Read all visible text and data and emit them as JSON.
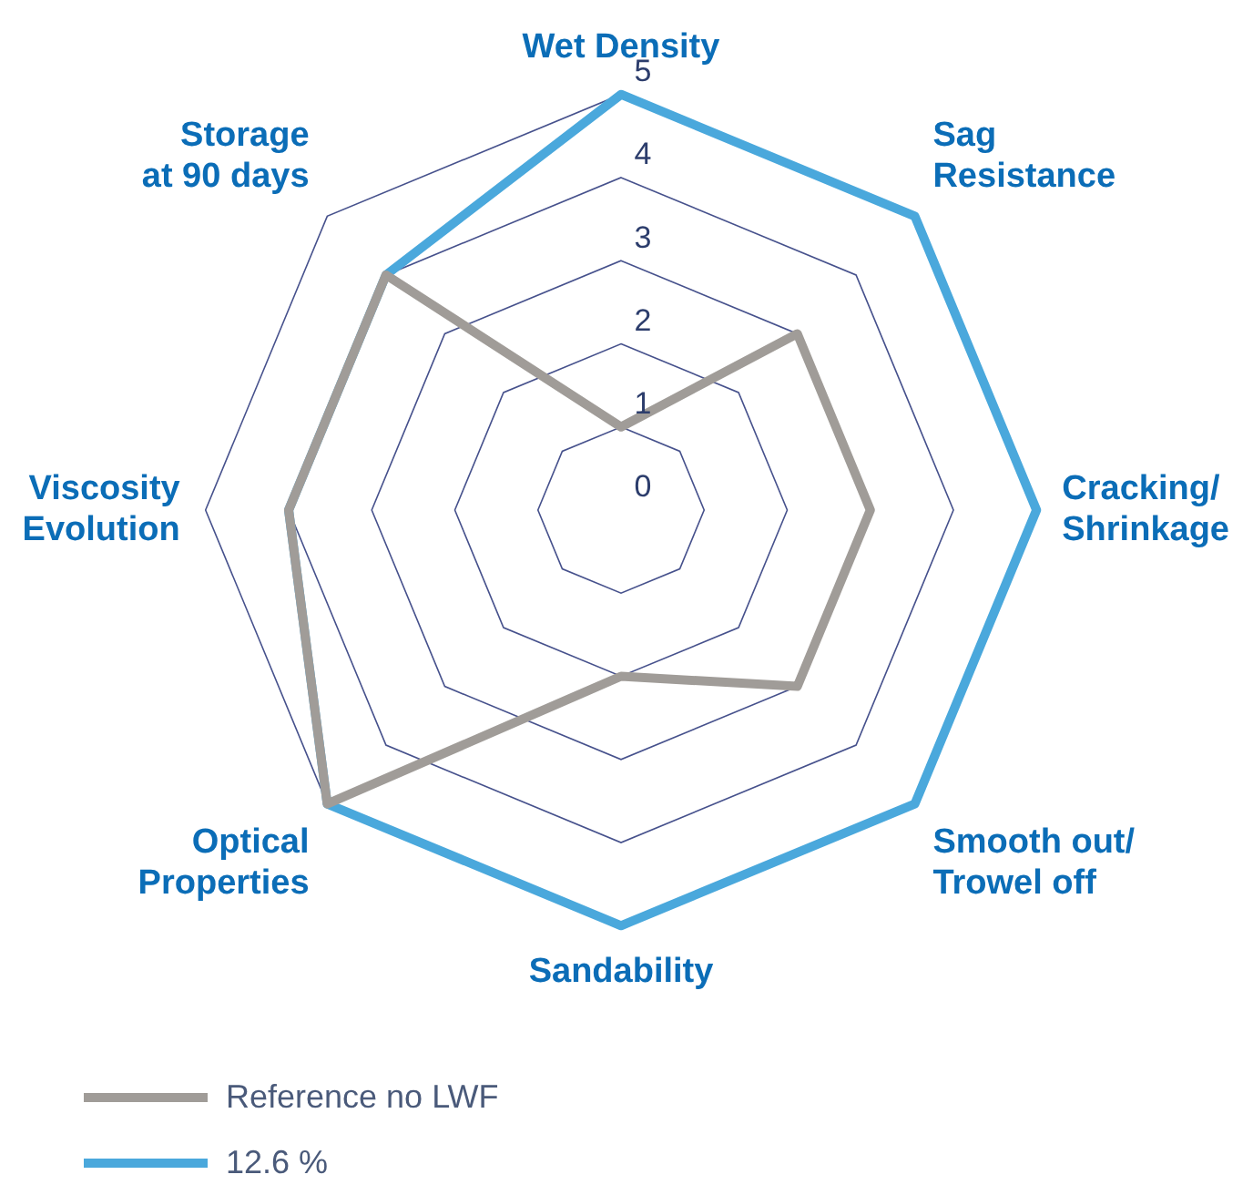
{
  "chart_data": {
    "type": "radar",
    "categories": [
      "Wet Density",
      "Sag Resistance",
      "Cracking/Shrinkage",
      "Smooth out/Trowel off",
      "Sandability",
      "Optical Properties",
      "Viscosity Evolution",
      "Storage at 90 days"
    ],
    "series": [
      {
        "name": "Reference no LWF",
        "color": "#a09c98",
        "values": [
          1,
          3,
          3,
          3,
          2,
          5,
          4,
          4
        ]
      },
      {
        "name": "12.6 %",
        "color": "#4aa8dc",
        "values": [
          5,
          5,
          5,
          5,
          5,
          5,
          4,
          4
        ]
      }
    ],
    "ylim": [
      0,
      5
    ],
    "yticks": [
      0,
      1,
      2,
      3,
      4,
      5
    ],
    "grid": true,
    "legend": "bottom left",
    "marker": "none",
    "line_style": "solid"
  }
}
